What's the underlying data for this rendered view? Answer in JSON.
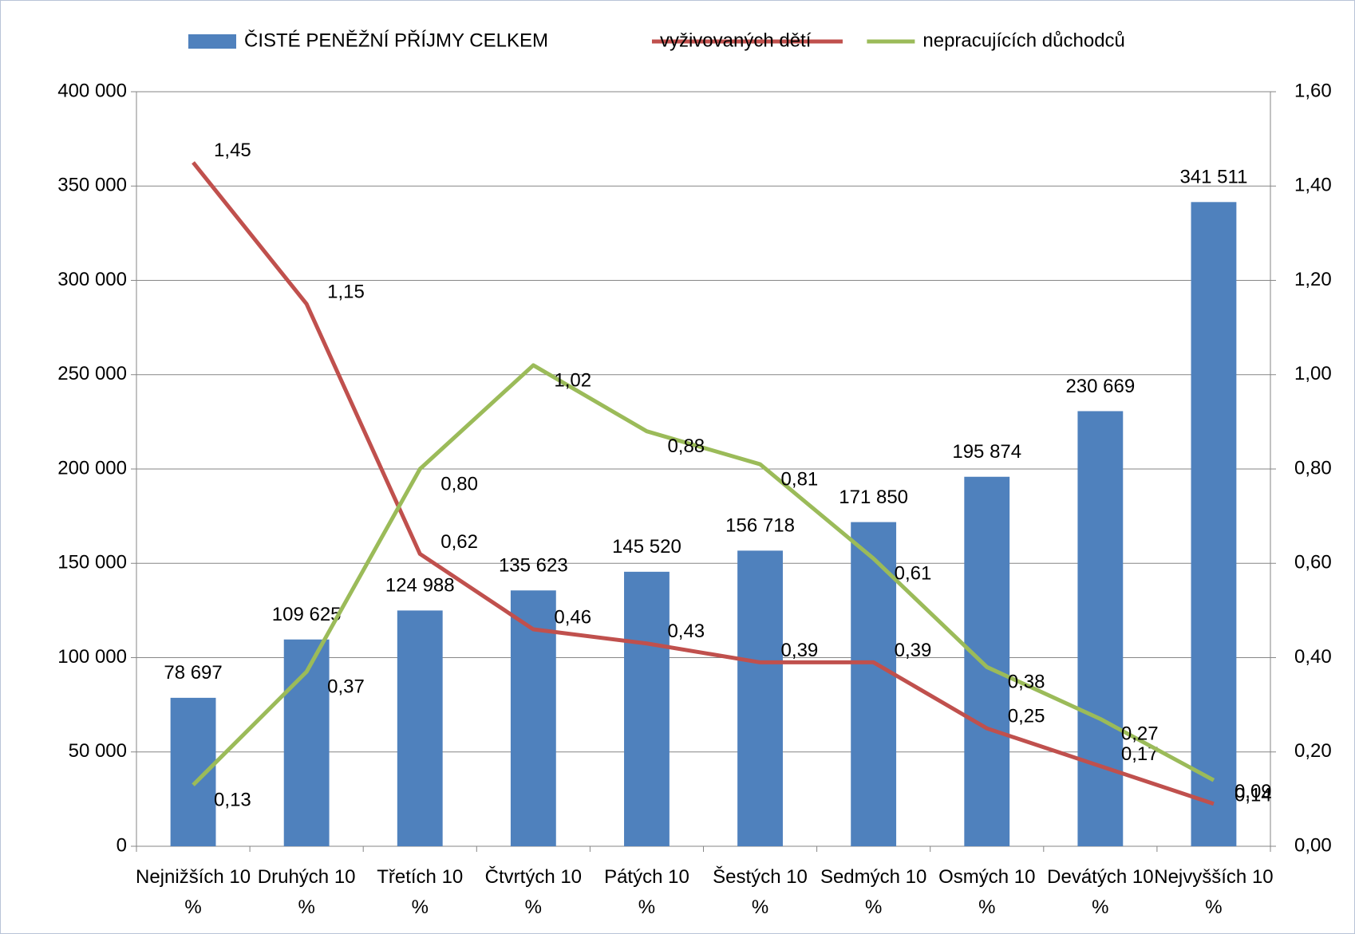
{
  "chart_data": {
    "type": "bar-line",
    "categories": [
      "Nejnižších 10 %",
      "Druhých 10 %",
      "Třetích 10 %",
      "Čtvrtých 10 %",
      "Pátých 10 %",
      "Šestých 10 %",
      "Sedmých 10 %",
      "Osmých 10 %",
      "Devátých 10 %",
      "Nejvyšších 10 %"
    ],
    "series": [
      {
        "name": "ČISTÉ PENĚŽNÍ PŘÍJMY CELKEM",
        "type": "bar",
        "color": "#4f81bd",
        "axis": "y",
        "values": [
          78697,
          109625,
          124988,
          135623,
          145520,
          156718,
          171850,
          195874,
          230669,
          341511
        ],
        "value_labels": [
          "78 697",
          "109 625",
          "124 988",
          "135 623",
          "145 520",
          "156 718",
          "171 850",
          "195 874",
          "230 669",
          "341 511"
        ]
      },
      {
        "name": "vyživovaných dětí",
        "type": "line",
        "color": "#c0504d",
        "axis": "y2",
        "values": [
          1.45,
          1.15,
          0.62,
          0.46,
          0.43,
          0.39,
          0.39,
          0.25,
          0.17,
          0.09
        ],
        "value_labels": [
          "1,45",
          "1,15",
          "0,62",
          "0,46",
          "0,43",
          "0,39",
          "0,39",
          "0,25",
          "0,17",
          "0,09"
        ]
      },
      {
        "name": "nepracujících důchodců",
        "type": "line",
        "color": "#9bbb59",
        "axis": "y2",
        "values": [
          0.13,
          0.37,
          0.8,
          1.02,
          0.88,
          0.81,
          0.61,
          0.38,
          0.27,
          0.14
        ],
        "value_labels": [
          "0,13",
          "0,37",
          "0,80",
          "1,02",
          "0,88",
          "0,81",
          "0,61",
          "0,38",
          "0,27",
          "0,14"
        ]
      }
    ],
    "ylim": [
      0,
      400000
    ],
    "yticks": [
      {
        "value": 0,
        "label": "0"
      },
      {
        "value": 50000,
        "label": "50 000"
      },
      {
        "value": 100000,
        "label": "100 000"
      },
      {
        "value": 150000,
        "label": "150 000"
      },
      {
        "value": 200000,
        "label": "200 000"
      },
      {
        "value": 250000,
        "label": "250 000"
      },
      {
        "value": 300000,
        "label": "300 000"
      },
      {
        "value": 350000,
        "label": "350 000"
      },
      {
        "value": 400000,
        "label": "400 000"
      }
    ],
    "y2lim": [
      0,
      1.6
    ],
    "y2ticks": [
      {
        "value": 0,
        "label": "0,00"
      },
      {
        "value": 0.2,
        "label": "0,20"
      },
      {
        "value": 0.4,
        "label": "0,40"
      },
      {
        "value": 0.6,
        "label": "0,60"
      },
      {
        "value": 0.8,
        "label": "0,80"
      },
      {
        "value": 1.0,
        "label": "1,00"
      },
      {
        "value": 1.2,
        "label": "1,20"
      },
      {
        "value": 1.4,
        "label": "1,40"
      },
      {
        "value": 1.6,
        "label": "1,60"
      }
    ],
    "grid": true,
    "legend": "top"
  }
}
